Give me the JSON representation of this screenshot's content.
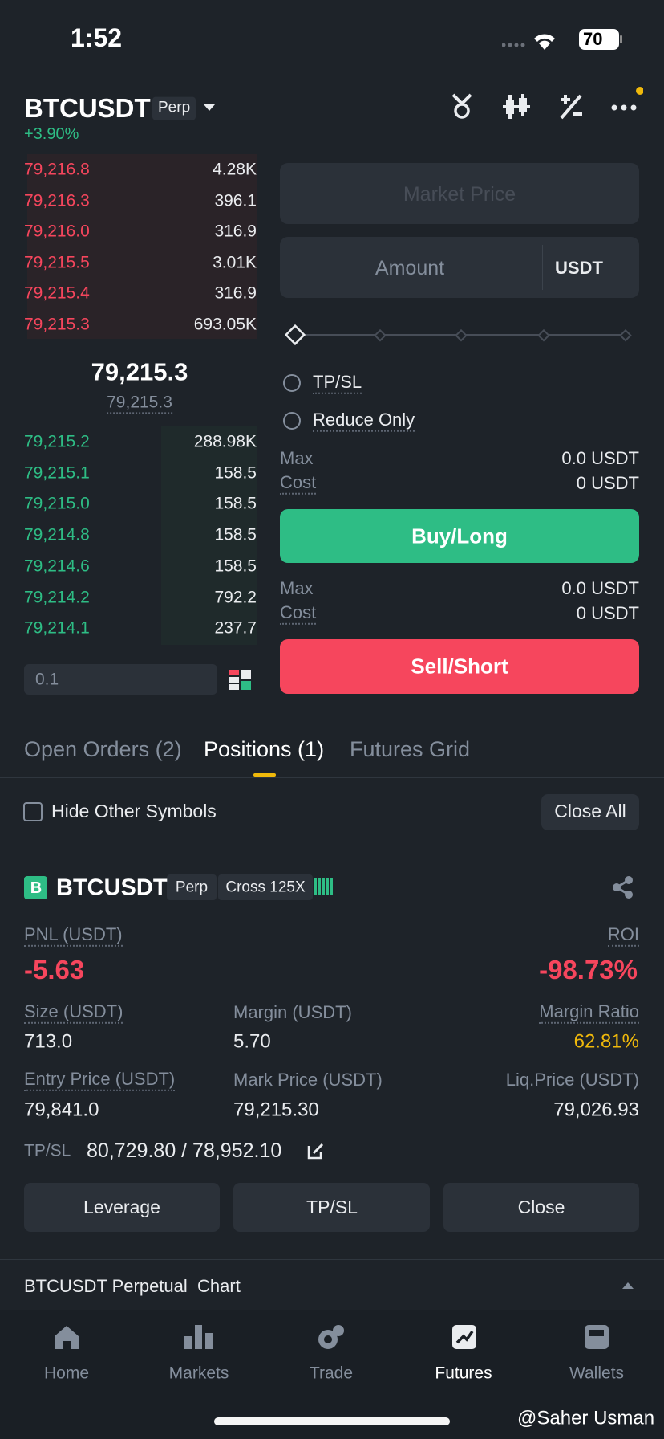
{
  "status_bar": {
    "time": "1:52",
    "battery": "70"
  },
  "header": {
    "symbol": "BTCUSDT",
    "contract": "Perp",
    "change": "+3.90%"
  },
  "order_book": {
    "asks": [
      [
        "79,216.8",
        "4.28K"
      ],
      [
        "79,216.3",
        "396.1"
      ],
      [
        "79,216.0",
        "316.9"
      ],
      [
        "79,215.5",
        "3.01K"
      ],
      [
        "79,215.4",
        "316.9"
      ],
      [
        "79,215.3",
        "693.05K"
      ]
    ],
    "last_price": "79,215.3",
    "mark_price": "79,215.3",
    "bids": [
      [
        "79,215.2",
        "288.98K"
      ],
      [
        "79,215.1",
        "158.5"
      ],
      [
        "79,215.0",
        "158.5"
      ],
      [
        "79,214.8",
        "158.5"
      ],
      [
        "79,214.6",
        "158.5"
      ],
      [
        "79,214.2",
        "792.2"
      ],
      [
        "79,214.1",
        "237.7"
      ]
    ],
    "precision": "0.1"
  },
  "order_form": {
    "price_placeholder": "Market Price",
    "amount_placeholder": "Amount",
    "unit": "USDT",
    "tpsl": "TP/SL",
    "reduce_only": "Reduce Only",
    "buy": {
      "max_label": "Max",
      "max": "0.0 USDT",
      "cost_label": "Cost",
      "cost": "0 USDT",
      "button": "Buy/Long"
    },
    "sell": {
      "max_label": "Max",
      "max": "0.0 USDT",
      "cost_label": "Cost",
      "cost": "0 USDT",
      "button": "Sell/Short"
    }
  },
  "tabs": [
    "Open Orders (2)",
    "Positions (1)",
    "Futures Grid"
  ],
  "filter": {
    "hide_other": "Hide Other Symbols",
    "close_all": "Close All"
  },
  "position": {
    "badge": "B",
    "symbol": "BTCUSDT",
    "contract": "Perp",
    "margin_mode": "Cross 125X",
    "pnl_label": "PNL (USDT)",
    "pnl": "-5.63",
    "roi_label": "ROI",
    "roi": "-98.73%",
    "fields": [
      {
        "label": "Size (USDT)",
        "value": "713.0"
      },
      {
        "label": "Margin (USDT)",
        "value": "5.70"
      },
      {
        "label": "Margin Ratio",
        "value": "62.81%"
      },
      {
        "label": "Entry Price (USDT)",
        "value": "79,841.0"
      },
      {
        "label": "Mark Price (USDT)",
        "value": "79,215.30"
      },
      {
        "label": "Liq.Price (USDT)",
        "value": "79,026.93"
      }
    ],
    "tpsl_label": "TP/SL",
    "tpsl": "80,729.80 / 78,952.10",
    "actions": [
      "Leverage",
      "TP/SL",
      "Close"
    ]
  },
  "chart_bar": "BTCUSDT Perpetual  Chart",
  "nav": [
    "Home",
    "Markets",
    "Trade",
    "Futures",
    "Wallets"
  ],
  "watermark": "@Saher Usman"
}
